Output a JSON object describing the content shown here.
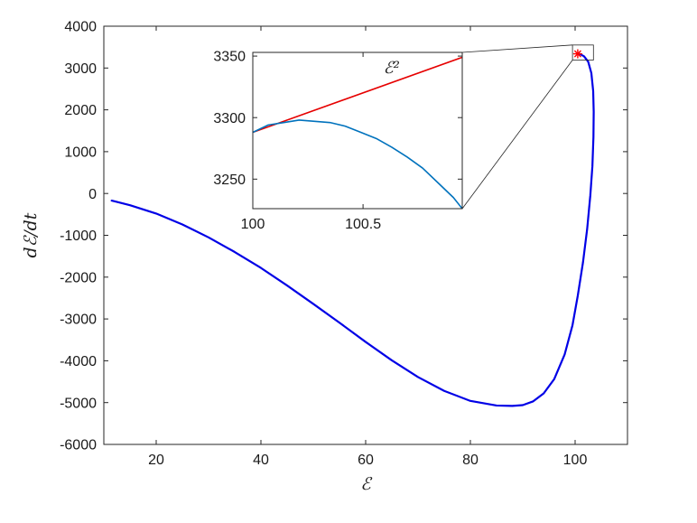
{
  "chart_data": [
    {
      "id": "main",
      "type": "line",
      "title": "",
      "xlabel": "ℰ",
      "ylabel": "dℰ/dt",
      "xlim": [
        10,
        110
      ],
      "ylim": [
        -6000,
        4000
      ],
      "xticks": [
        20,
        40,
        60,
        80,
        100
      ],
      "xtick_labels": [
        "20",
        "40",
        "60",
        "80",
        "100"
      ],
      "yticks": [
        -6000,
        -5000,
        -4000,
        -3000,
        -2000,
        -1000,
        0,
        1000,
        2000,
        3000,
        4000
      ],
      "ytick_labels": [
        "-6000",
        "-5000",
        "-4000",
        "-3000",
        "-2000",
        "-1000",
        "0",
        "1000",
        "2000",
        "3000",
        "4000"
      ],
      "grid": false,
      "series": [
        {
          "color": "#0000e6",
          "x": [
            11.5,
            15,
            20,
            25,
            30,
            35,
            40,
            45,
            50,
            55,
            60,
            65,
            70,
            75,
            80,
            85,
            88,
            90,
            92,
            94,
            96,
            98,
            99.5,
            100.5,
            101.5,
            102.3,
            102.9,
            103.3,
            103.5,
            103.55,
            103.45,
            103.1,
            102.5,
            101.7,
            101.0,
            100.6
          ],
          "y": [
            -170,
            -280,
            -480,
            -740,
            -1050,
            -1400,
            -1780,
            -2200,
            -2640,
            -3090,
            -3550,
            -3990,
            -4390,
            -4720,
            -4960,
            -5070,
            -5080,
            -5060,
            -4970,
            -4780,
            -4440,
            -3850,
            -3150,
            -2450,
            -1650,
            -850,
            -50,
            650,
            1350,
            1950,
            2450,
            2880,
            3150,
            3280,
            3330,
            3348
          ]
        }
      ],
      "markers": [
        {
          "x": 100.5,
          "y": 3340,
          "color": "#ff0000",
          "symbol": "*"
        }
      ],
      "zoom_box": {
        "x": [
          99.5,
          103.5
        ],
        "y": [
          3190,
          3550
        ]
      }
    },
    {
      "id": "inset",
      "type": "line",
      "title": "",
      "xlabel": "",
      "ylabel": "",
      "xlim": [
        100,
        100.95
      ],
      "ylim": [
        3226,
        3353
      ],
      "xticks": [
        100,
        100.5
      ],
      "xtick_labels": [
        "100",
        "100.5"
      ],
      "yticks": [
        3250,
        3300,
        3350
      ],
      "ytick_labels": [
        "3250",
        "3300",
        "3350"
      ],
      "grid": false,
      "annotation": "ℰ²",
      "annotation_at": {
        "x": 100.63,
        "y": 3336
      },
      "series": [
        {
          "color": "#e60000",
          "x": [
            100,
            100.95
          ],
          "y": [
            3288,
            3349
          ]
        },
        {
          "color": "#0072bd",
          "x": [
            100,
            100.07,
            100.14,
            100.21,
            100.28,
            100.35,
            100.42,
            100.49,
            100.56,
            100.63,
            100.7,
            100.77,
            100.84,
            100.91,
            100.95
          ],
          "y": [
            3288,
            3294,
            3296,
            3298,
            3297,
            3296,
            3293,
            3288,
            3283,
            3276,
            3268,
            3259,
            3247,
            3235,
            3226
          ]
        }
      ]
    }
  ]
}
